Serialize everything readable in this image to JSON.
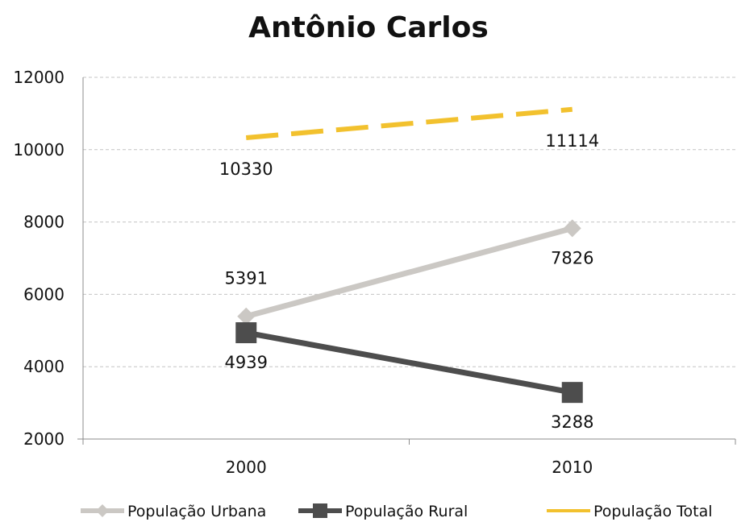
{
  "chart_data": {
    "type": "line",
    "title": "Antônio Carlos",
    "xlabel": "",
    "ylabel": "",
    "categories": [
      "2000",
      "2010"
    ],
    "ylim": [
      2000,
      12000
    ],
    "yticks": [
      2000,
      4000,
      6000,
      8000,
      10000,
      12000
    ],
    "grid": "horizontal dashed",
    "legend_position": "bottom",
    "series": [
      {
        "name": "População Urbana",
        "values": [
          5391,
          7826
        ],
        "labels": [
          "5391",
          "7826"
        ],
        "color": "#cbc8c4",
        "marker": "diamond",
        "style": "solid"
      },
      {
        "name": "População Rural",
        "values": [
          4939,
          3288
        ],
        "labels": [
          "4939",
          "3288"
        ],
        "color": "#4d4d4d",
        "marker": "square",
        "style": "solid"
      },
      {
        "name": "População Total",
        "values": [
          10330,
          11114
        ],
        "labels": [
          "10330",
          "11114"
        ],
        "color": "#f2c12e",
        "marker": "none",
        "style": "dashed"
      }
    ]
  }
}
